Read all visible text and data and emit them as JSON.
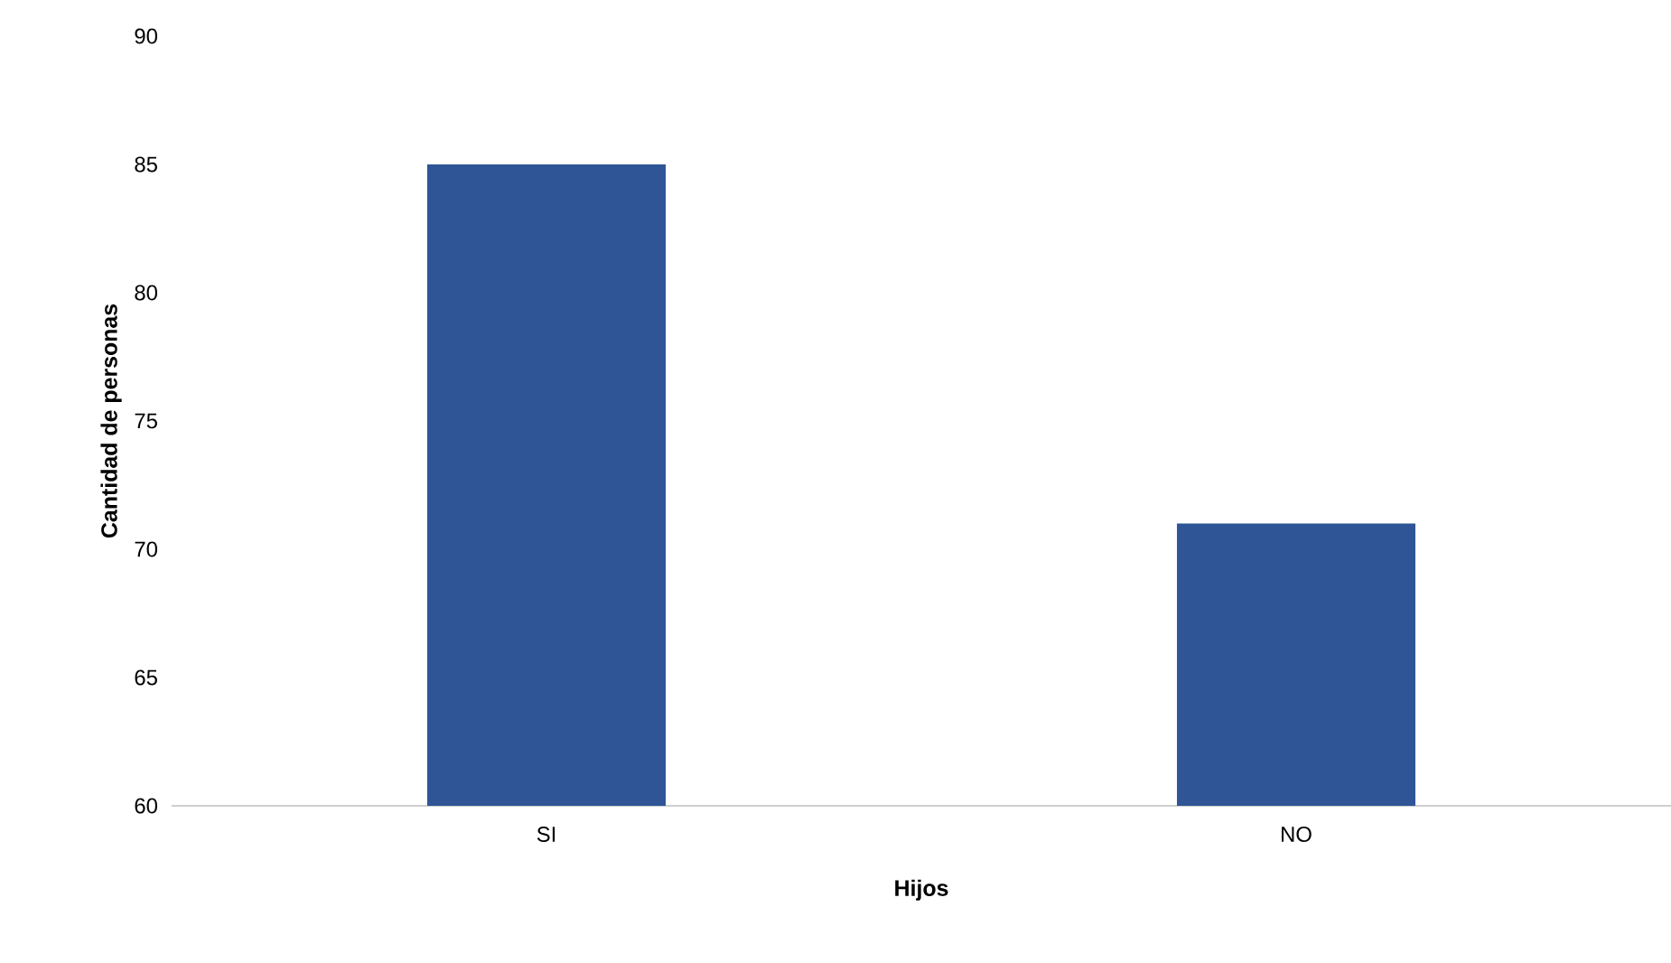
{
  "chart_data": {
    "type": "bar",
    "xlabel": "Hijos",
    "ylabel": "Cantidad de personas",
    "categories": [
      "SI",
      "NO"
    ],
    "series": [
      {
        "color": "#2f5597",
        "values": [
          85,
          71
        ]
      }
    ],
    "ylim": [
      60,
      90
    ],
    "yticks": [
      60,
      65,
      70,
      75,
      80,
      85,
      90
    ]
  }
}
